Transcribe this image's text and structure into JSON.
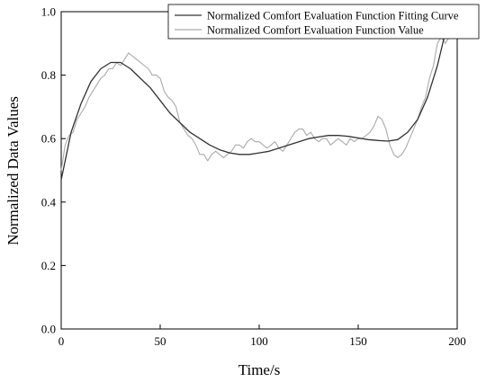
{
  "chart_data": {
    "type": "line",
    "xlabel": "Time/s",
    "ylabel": "Normalized Data Values",
    "xlim": [
      0,
      200
    ],
    "ylim": [
      0.0,
      1.0
    ],
    "xticks": [
      0,
      50,
      100,
      150,
      200
    ],
    "yticks": [
      0.0,
      0.2,
      0.4,
      0.6,
      0.8,
      1.0
    ],
    "xtick_labels": [
      "0",
      "50",
      "100",
      "150",
      "200"
    ],
    "ytick_labels": [
      "0.0",
      "0.2",
      "0.4",
      "0.6",
      "0.8",
      "1.0"
    ],
    "grid": false,
    "legend_position": "top-right",
    "series": [
      {
        "name": "Normalized Comfort Evaluation Function Fitting Curve",
        "color": "#333333",
        "x": [
          0,
          5,
          10,
          15,
          20,
          25,
          30,
          35,
          40,
          45,
          50,
          55,
          60,
          65,
          70,
          75,
          80,
          85,
          90,
          95,
          100,
          105,
          110,
          115,
          120,
          125,
          130,
          135,
          140,
          145,
          150,
          155,
          160,
          165,
          170,
          175,
          180,
          185,
          190,
          195
        ],
        "y": [
          0.47,
          0.62,
          0.71,
          0.78,
          0.82,
          0.84,
          0.84,
          0.82,
          0.79,
          0.76,
          0.72,
          0.68,
          0.65,
          0.62,
          0.6,
          0.58,
          0.565,
          0.555,
          0.55,
          0.55,
          0.555,
          0.56,
          0.57,
          0.58,
          0.59,
          0.6,
          0.605,
          0.61,
          0.61,
          0.607,
          0.602,
          0.597,
          0.594,
          0.592,
          0.597,
          0.62,
          0.66,
          0.73,
          0.83,
          0.96
        ]
      },
      {
        "name": "Normalized Comfort Evaluation Function Value",
        "color": "#aaaaaa",
        "x": [
          0,
          2,
          4,
          6,
          8,
          10,
          12,
          14,
          16,
          18,
          20,
          22,
          24,
          26,
          28,
          30,
          32,
          34,
          36,
          38,
          40,
          42,
          44,
          46,
          48,
          50,
          52,
          54,
          56,
          58,
          60,
          62,
          64,
          66,
          68,
          70,
          72,
          74,
          76,
          78,
          80,
          82,
          84,
          86,
          88,
          90,
          92,
          94,
          96,
          98,
          100,
          102,
          104,
          106,
          108,
          110,
          112,
          114,
          116,
          118,
          120,
          122,
          124,
          126,
          128,
          130,
          132,
          134,
          136,
          138,
          140,
          142,
          144,
          146,
          148,
          150,
          152,
          154,
          156,
          158,
          160,
          162,
          164,
          166,
          168,
          170,
          172,
          174,
          176,
          178,
          180,
          182,
          184,
          186,
          188,
          190,
          192,
          194,
          196
        ],
        "y": [
          0.5,
          0.58,
          0.61,
          0.62,
          0.66,
          0.68,
          0.7,
          0.73,
          0.75,
          0.77,
          0.79,
          0.8,
          0.82,
          0.82,
          0.84,
          0.83,
          0.85,
          0.87,
          0.86,
          0.85,
          0.84,
          0.83,
          0.82,
          0.8,
          0.8,
          0.79,
          0.75,
          0.73,
          0.72,
          0.7,
          0.65,
          0.63,
          0.61,
          0.6,
          0.58,
          0.55,
          0.55,
          0.53,
          0.55,
          0.56,
          0.55,
          0.54,
          0.55,
          0.56,
          0.58,
          0.58,
          0.57,
          0.59,
          0.6,
          0.59,
          0.59,
          0.58,
          0.57,
          0.58,
          0.59,
          0.57,
          0.56,
          0.58,
          0.6,
          0.62,
          0.63,
          0.63,
          0.61,
          0.62,
          0.6,
          0.59,
          0.6,
          0.6,
          0.58,
          0.59,
          0.6,
          0.59,
          0.58,
          0.6,
          0.59,
          0.6,
          0.6,
          0.61,
          0.62,
          0.64,
          0.67,
          0.66,
          0.63,
          0.58,
          0.55,
          0.54,
          0.55,
          0.57,
          0.6,
          0.63,
          0.66,
          0.7,
          0.73,
          0.79,
          0.83,
          0.9,
          0.92,
          0.9,
          0.92
        ]
      }
    ]
  }
}
